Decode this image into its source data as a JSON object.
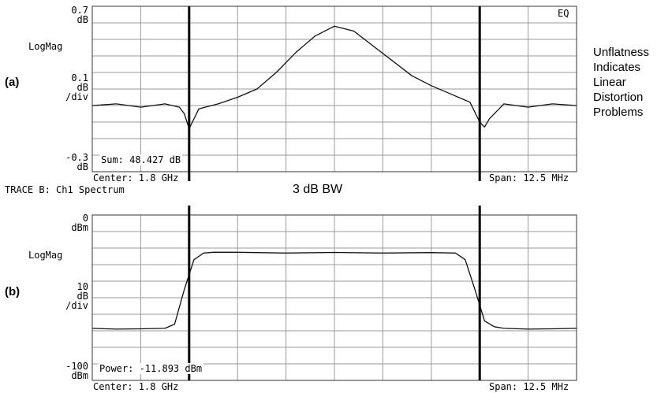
{
  "side_note": [
    "Unflatness",
    "Indicates",
    "Linear",
    "Distortion",
    "Problems"
  ],
  "middle_label": "3 dB BW",
  "chart_data": [
    {
      "type": "line",
      "panel_label": "(a)",
      "corner_label": "EQ",
      "scale_format": "LogMag",
      "y_top": [
        "0.7",
        "dB"
      ],
      "y_div": [
        "0.1",
        "dB",
        "/div"
      ],
      "y_bottom": [
        "-0.3",
        "dB"
      ],
      "ylim": [
        -0.3,
        0.7
      ],
      "x_divisions": 10,
      "y_divisions": 10,
      "grid": true,
      "readout": "Sum: 48.427 dB",
      "center_label": "Center: 1.8 GHz",
      "span_label": "Span: 12.5 MHz",
      "marker_lines": [
        -0.3,
        0.3
      ],
      "series": [
        {
          "x": [
            -0.5,
            -0.45,
            -0.4,
            -0.35,
            -0.32,
            -0.31,
            -0.3,
            -0.28,
            -0.24,
            -0.2,
            -0.16,
            -0.12,
            -0.08,
            -0.04,
            0.0,
            0.04,
            0.08,
            0.12,
            0.16,
            0.2,
            0.24,
            0.28,
            0.3,
            0.31,
            0.32,
            0.35,
            0.4,
            0.45,
            0.5
          ],
          "y": [
            0.1,
            0.11,
            0.09,
            0.11,
            0.09,
            0.05,
            -0.04,
            0.08,
            0.11,
            0.15,
            0.2,
            0.3,
            0.42,
            0.52,
            0.58,
            0.55,
            0.46,
            0.37,
            0.28,
            0.22,
            0.17,
            0.12,
            0.0,
            -0.03,
            0.02,
            0.11,
            0.09,
            0.11,
            0.1
          ]
        }
      ]
    },
    {
      "type": "line",
      "panel_label": "(b)",
      "title": "TRACE B: Ch1 Spectrum",
      "scale_format": "LogMag",
      "y_top": [
        "0",
        "dBm"
      ],
      "y_div": [
        "10",
        "dB",
        "/div"
      ],
      "y_bottom": [
        "-100",
        "dBm"
      ],
      "ylim": [
        -100,
        0
      ],
      "x_divisions": 10,
      "y_divisions": 10,
      "grid": true,
      "readout": "Power: -11.893 dBm",
      "center_label": "Center: 1.8 GHz",
      "span_label": "Span: 12.5 MHz",
      "marker_lines": [
        -0.3,
        0.3
      ],
      "series": [
        {
          "x": [
            -0.5,
            -0.45,
            -0.4,
            -0.35,
            -0.33,
            -0.31,
            -0.29,
            -0.27,
            -0.25,
            -0.2,
            -0.1,
            0.0,
            0.1,
            0.2,
            0.25,
            0.27,
            0.29,
            0.31,
            0.33,
            0.35,
            0.4,
            0.45,
            0.5
          ],
          "y": [
            -68.5,
            -69.0,
            -68.8,
            -68.5,
            -66.0,
            -45.0,
            -27.0,
            -23.0,
            -22.5,
            -22.5,
            -23.0,
            -22.6,
            -23.0,
            -22.7,
            -23.0,
            -27.0,
            -45.0,
            -64.0,
            -67.5,
            -68.5,
            -69.0,
            -68.8,
            -68.5
          ]
        }
      ]
    }
  ]
}
